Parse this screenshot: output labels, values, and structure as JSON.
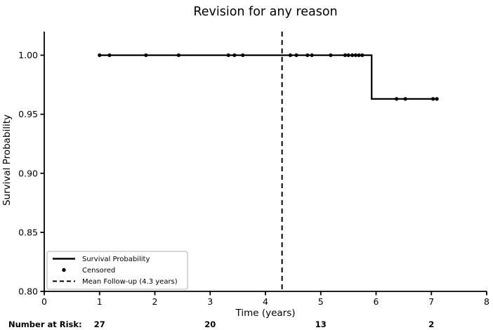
{
  "chart_data": {
    "type": "line",
    "title": "Revision for any reason",
    "xlabel": "Time (years)",
    "ylabel": "Survival Probability",
    "xlim": [
      0,
      8
    ],
    "ylim": [
      0.8,
      1.02
    ],
    "x_ticks": [
      0,
      1,
      2,
      3,
      4,
      5,
      6,
      7,
      8
    ],
    "y_ticks": [
      0.8,
      0.85,
      0.9,
      0.95,
      1.0
    ],
    "grid": false,
    "legend_position": "lower-left",
    "series": [
      {
        "name": "Survival Probability",
        "style": "step-solid",
        "color": "#000000",
        "points": [
          [
            1.0,
            1.0
          ],
          [
            5.92,
            1.0
          ],
          [
            5.92,
            0.963
          ],
          [
            7.12,
            0.963
          ]
        ]
      }
    ],
    "censored": {
      "name": "Censored",
      "marker": "dot",
      "color": "#000000",
      "points": [
        [
          1.0,
          1.0
        ],
        [
          1.18,
          1.0
        ],
        [
          1.84,
          1.0
        ],
        [
          2.43,
          1.0
        ],
        [
          3.33,
          1.0
        ],
        [
          3.44,
          1.0
        ],
        [
          3.59,
          1.0
        ],
        [
          4.45,
          1.0
        ],
        [
          4.56,
          1.0
        ],
        [
          4.76,
          1.0
        ],
        [
          4.84,
          1.0
        ],
        [
          5.18,
          1.0
        ],
        [
          5.44,
          1.0
        ],
        [
          5.5,
          1.0
        ],
        [
          5.57,
          1.0
        ],
        [
          5.63,
          1.0
        ],
        [
          5.69,
          1.0
        ],
        [
          5.75,
          1.0
        ],
        [
          6.37,
          0.963
        ],
        [
          6.53,
          0.963
        ],
        [
          7.03,
          0.963
        ],
        [
          7.1,
          0.963
        ]
      ]
    },
    "mean_followup": {
      "label": "Mean Follow-up (4.3 years)",
      "value_years": 4.3,
      "line_style": "dashed",
      "color": "#000000"
    },
    "legend": [
      {
        "label": "Survival Probability",
        "glyph": "solid-line"
      },
      {
        "label": "Censored",
        "glyph": "dot"
      },
      {
        "label": "Mean Follow-up (4.3 years)",
        "glyph": "dashed-line"
      }
    ],
    "number_at_risk": {
      "label": "Number at Risk:",
      "times": [
        1,
        3,
        5,
        7
      ],
      "counts": [
        27,
        20,
        13,
        2
      ]
    }
  }
}
